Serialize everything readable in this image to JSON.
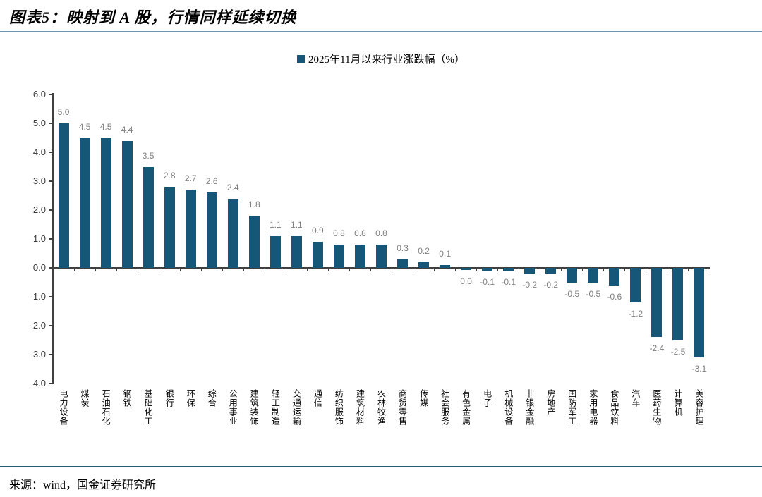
{
  "header": {
    "title": "图表5：映射到 A 股，行情同样延续切换"
  },
  "legend": {
    "label": "2025年11月以来行业涨跌幅（%）"
  },
  "colors": {
    "bar": "#165677",
    "value_label": "#7f7f7f",
    "axis": "#404040",
    "header_rule": "#7295ae",
    "footer_rule": "#275f6e"
  },
  "chart_data": {
    "type": "bar",
    "title": "2025年11月以来行业涨跌幅（%）",
    "xlabel": "",
    "ylabel": "",
    "ylim": [
      -4.0,
      6.0
    ],
    "y_ticks": [
      "6.0",
      "5.0",
      "4.0",
      "3.0",
      "2.0",
      "1.0",
      "0.0",
      "-1.0",
      "-2.0",
      "-3.0",
      "-4.0"
    ],
    "grid": false,
    "legend_position": "top-center",
    "categories": [
      "电力设备",
      "煤炭",
      "石油石化",
      "钢铁",
      "基础化工",
      "银行",
      "环保",
      "综合",
      "公用事业",
      "建筑装饰",
      "轻工制造",
      "交通运输",
      "通信",
      "纺织服饰",
      "建筑材料",
      "农林牧渔",
      "商贸零售",
      "传媒",
      "社会服务",
      "有色金属",
      "电子",
      "机械设备",
      "非银金融",
      "房地产",
      "国防军工",
      "家用电器",
      "食品饮料",
      "汽车",
      "医药生物",
      "计算机",
      "美容护理"
    ],
    "values": [
      5.0,
      4.5,
      4.5,
      4.4,
      3.5,
      2.8,
      2.7,
      2.6,
      2.4,
      1.8,
      1.1,
      1.1,
      0.9,
      0.8,
      0.8,
      0.8,
      0.3,
      0.2,
      0.1,
      0.0,
      -0.1,
      -0.1,
      -0.2,
      -0.2,
      -0.5,
      -0.5,
      -0.6,
      -1.2,
      -2.4,
      -2.5,
      -3.1
    ],
    "labels": [
      "5.0",
      "4.5",
      "4.5",
      "4.4",
      "3.5",
      "2.8",
      "2.7",
      "2.6",
      "2.4",
      "1.8",
      "1.1",
      "1.1",
      "0.9",
      "0.8",
      "0.8",
      "0.8",
      "0.3",
      "0.2",
      "0.1",
      "0.0",
      "-0.1",
      "-0.1",
      "-0.2",
      "-0.2",
      "-0.5",
      "-0.5",
      "-0.6",
      "-1.2",
      "-2.4",
      "-2.5",
      "-3.1"
    ]
  },
  "footer": {
    "source": "来源：wind，国金证券研究所"
  }
}
